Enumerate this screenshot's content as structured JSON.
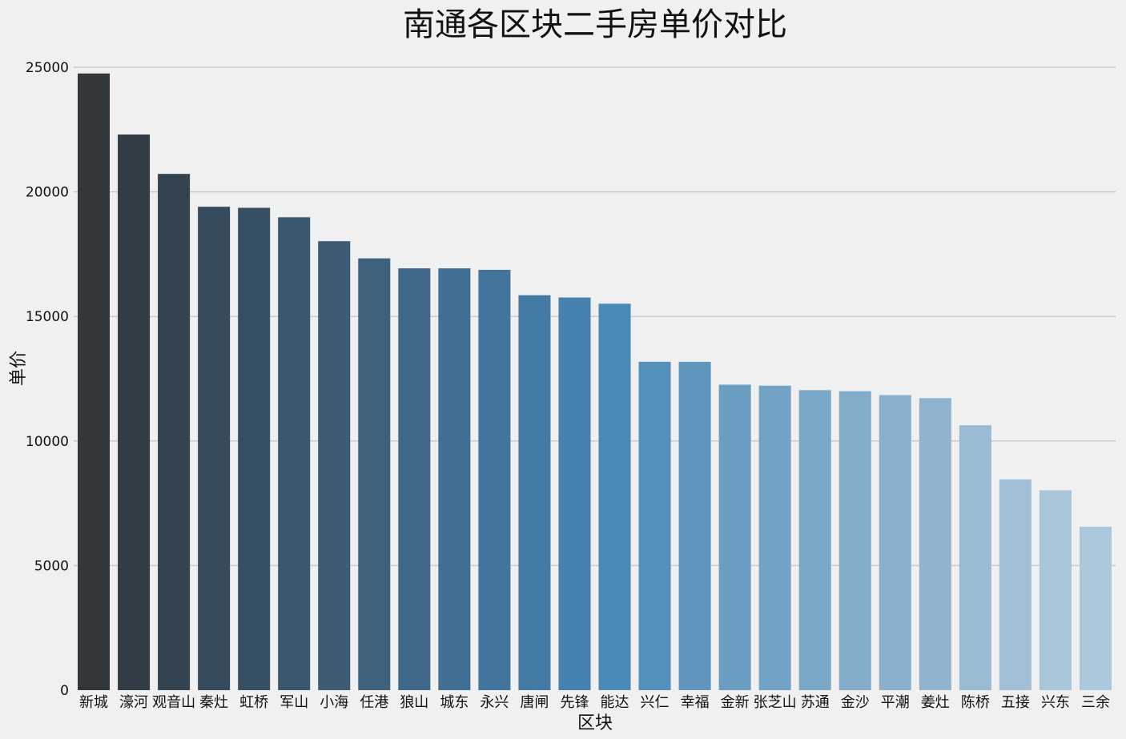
{
  "chart_data": {
    "type": "bar",
    "title": "南通各区块二手房单价对比",
    "xlabel": "区块",
    "ylabel": "单价",
    "ylim": [
      0,
      25000
    ],
    "yticks": [
      0,
      5000,
      10000,
      15000,
      20000,
      25000
    ],
    "grid": "horizontal",
    "categories": [
      "新城",
      "濠河",
      "观音山",
      "秦灶",
      "虹桥",
      "军山",
      "小海",
      "任港",
      "狼山",
      "城东",
      "永兴",
      "唐闸",
      "先锋",
      "能达",
      "兴仁",
      "幸福",
      "金新",
      "张芝山",
      "苏通",
      "金沙",
      "平潮",
      "姜灶",
      "陈桥",
      "五接",
      "兴东",
      "三余"
    ],
    "values": [
      24750,
      22300,
      20720,
      19400,
      19360,
      18980,
      18020,
      17330,
      16930,
      16930,
      16870,
      15850,
      15760,
      15510,
      13180,
      13180,
      12260,
      12220,
      12040,
      12000,
      11840,
      11720,
      10630,
      8460,
      8020,
      6560
    ],
    "colors": [
      "#32373c",
      "#323c46",
      "#334350",
      "#354a5a",
      "#374f63",
      "#3a566c",
      "#3c5b75",
      "#3e627e",
      "#40688a",
      "#416e93",
      "#43749b",
      "#447ba5",
      "#4681b0",
      "#4a8ab9",
      "#558fbb",
      "#6096be",
      "#6a9dc1",
      "#72a2c5",
      "#7aa8c9",
      "#82acca",
      "#8ab0cd",
      "#90b4cf",
      "#98bad3",
      "#a1c0d7",
      "#a8c5da",
      "#acc8dd"
    ]
  }
}
